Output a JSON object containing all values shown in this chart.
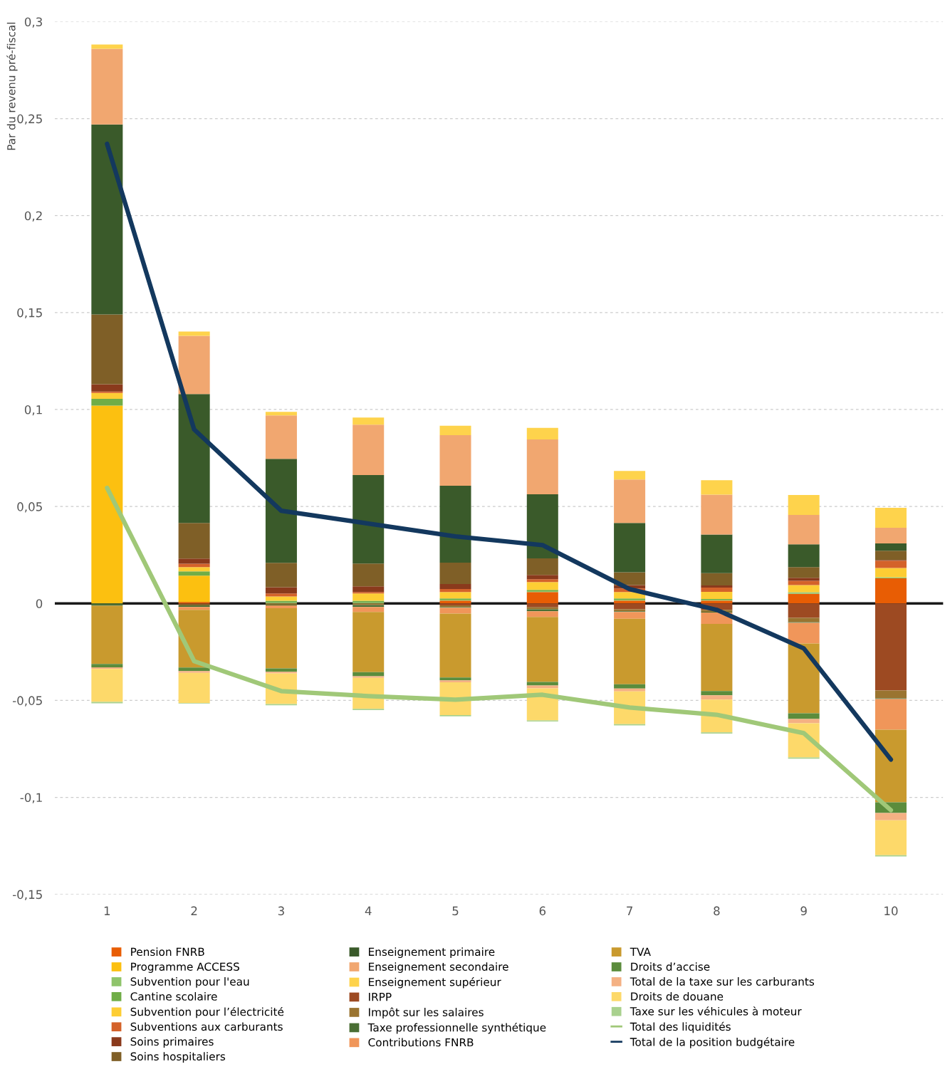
{
  "chart_data": {
    "type": "bar",
    "stacked": true,
    "ylabel": "Par du revenu pré-fiscal",
    "categories": [
      "1",
      "2",
      "3",
      "4",
      "5",
      "6",
      "7",
      "8",
      "9",
      "10"
    ],
    "ylim": [
      -0.15,
      0.3
    ],
    "yticks": [
      {
        "value": 0.3,
        "label": "0,3"
      },
      {
        "value": 0.25,
        "label": "0,25"
      },
      {
        "value": 0.2,
        "label": "0,2"
      },
      {
        "value": 0.15,
        "label": "0,15"
      },
      {
        "value": 0.1,
        "label": "0,1"
      },
      {
        "value": 0.05,
        "label": "0,05"
      },
      0,
      {
        "value": -0.05,
        "label": "-0,05"
      },
      {
        "value": -0.1,
        "label": "-0,1"
      },
      {
        "value": -0.15,
        "label": "-0,15"
      }
    ],
    "grid": "y",
    "legend": "bottom",
    "ref_lines": [
      {
        "axis": "y",
        "value": 0,
        "color": "#1a1a1a"
      }
    ],
    "series": [
      {
        "name": "Pension FNRB",
        "color": "#e85d04",
        "values": [
          0,
          0.0007,
          0,
          0,
          0.0015,
          0.0059,
          0.0015,
          0.0015,
          0.005,
          0.0129
        ]
      },
      {
        "name": "Programme ACCESS",
        "color": "#fcc010",
        "values": [
          0.102,
          0.0136,
          0,
          0,
          0,
          0,
          0,
          0,
          0,
          0
        ]
      },
      {
        "name": "Subvention pour l'eau",
        "color": "#8fc46b",
        "values": [
          0,
          0,
          0.0006,
          0.0006,
          0.0004,
          0.0004,
          0.0004,
          0.0004,
          0.0004,
          0.0006
        ]
      },
      {
        "name": "Cantine scolaire",
        "color": "#70ad47",
        "values": [
          0.0035,
          0.0022,
          0.0008,
          0.0008,
          0.0007,
          0.0007,
          0.0007,
          0.0004,
          0.0004,
          0
        ]
      },
      {
        "name": "Subvention pour l’électricité",
        "color": "#fdcd34",
        "values": [
          0.003,
          0.0022,
          0.0022,
          0.0037,
          0.0033,
          0.004,
          0.0033,
          0.0037,
          0.0037,
          0.0048
        ]
      },
      {
        "name": "Subventions aux carburants",
        "color": "#d4622a",
        "values": [
          0.0008,
          0.0018,
          0.0015,
          0.0008,
          0.0015,
          0.0015,
          0.0018,
          0.0022,
          0.0022,
          0.0037
        ]
      },
      {
        "name": "Soins primaires",
        "color": "#8a3a1c",
        "values": [
          0.0037,
          0.0026,
          0.0033,
          0.0029,
          0.0026,
          0.0022,
          0.0018,
          0.0011,
          0.0015,
          0.0004
        ]
      },
      {
        "name": "Soins hospitaliers",
        "color": "#7f5f27",
        "values": [
          0.036,
          0.0184,
          0.0125,
          0.0118,
          0.011,
          0.0085,
          0.0066,
          0.0063,
          0.0055,
          0.0048
        ]
      },
      {
        "name": "Enseignement primaire",
        "color": "#3a5a2a",
        "values": [
          0.098,
          0.0665,
          0.0537,
          0.0456,
          0.0397,
          0.0331,
          0.0254,
          0.0199,
          0.0118,
          0.0037
        ]
      },
      {
        "name": "Enseignement secondaire",
        "color": "#f1a770",
        "values": [
          0.039,
          0.03,
          0.0224,
          0.026,
          0.0261,
          0.0283,
          0.0224,
          0.0206,
          0.0151,
          0.0081
        ]
      },
      {
        "name": "Enseignement supérieur",
        "color": "#fed34c",
        "values": [
          0.0022,
          0.0022,
          0.0018,
          0.0037,
          0.0048,
          0.0059,
          0.0044,
          0.0074,
          0.0103,
          0.0103
        ]
      },
      {
        "name": "IRPP",
        "color": "#9d4a22",
        "values": [
          0,
          -0.0005,
          0,
          0,
          -0.001,
          -0.002,
          -0.003,
          -0.0033,
          -0.0074,
          -0.0449
        ]
      },
      {
        "name": "Impôt sur les salaires",
        "color": "#9a7430",
        "values": [
          0,
          -0.0005,
          -0.0006,
          -0.0008,
          -0.0008,
          -0.001,
          -0.001,
          -0.001,
          -0.0022,
          -0.004
        ]
      },
      {
        "name": "Taxe professionnelle synthétique",
        "color": "#4a6e34",
        "values": [
          -0.0012,
          -0.0008,
          -0.0004,
          -0.001,
          -0.0004,
          -0.001,
          -0.0004,
          -0.0004,
          -0.0004,
          -0.0004
        ]
      },
      {
        "name": "Contributions FNRB",
        "color": "#f0965a",
        "values": [
          0,
          -0.0015,
          -0.0015,
          -0.0026,
          -0.003,
          -0.003,
          -0.0035,
          -0.0059,
          -0.0107,
          -0.0158
        ]
      },
      {
        "name": "TVA",
        "color": "#c99a2e",
        "values": [
          -0.03,
          -0.0298,
          -0.031,
          -0.031,
          -0.033,
          -0.0335,
          -0.0338,
          -0.0346,
          -0.036,
          -0.0375
        ]
      },
      {
        "name": "Droits d’accise",
        "color": "#5b8c3c",
        "values": [
          -0.0018,
          -0.0018,
          -0.0018,
          -0.0022,
          -0.0015,
          -0.0018,
          -0.0022,
          -0.0022,
          -0.0029,
          -0.0055
        ]
      },
      {
        "name": "Total de la taxe sur les carburants",
        "color": "#f4b183",
        "values": [
          -0.0008,
          -0.0009,
          -0.0008,
          -0.0008,
          -0.001,
          -0.0015,
          -0.0015,
          -0.0022,
          -0.0022,
          -0.0037
        ]
      },
      {
        "name": "Droits de douane",
        "color": "#fdd96a",
        "values": [
          -0.017,
          -0.0155,
          -0.0158,
          -0.016,
          -0.0169,
          -0.0165,
          -0.0169,
          -0.0169,
          -0.0176,
          -0.018
        ]
      },
      {
        "name": "Taxe sur les véhicules à moteur",
        "color": "#a9d18e",
        "values": [
          -0.0007,
          -0.0003,
          -0.0006,
          -0.0006,
          -0.0006,
          -0.0006,
          -0.0006,
          -0.0006,
          -0.0007,
          -0.0007
        ]
      },
      {
        "name": "Total des liquidités",
        "type": "line",
        "color": "#a0c878",
        "marker": "none",
        "line_style": "solid",
        "values": [
          0.0596,
          -0.0298,
          -0.0452,
          -0.0478,
          -0.0496,
          -0.0471,
          -0.0537,
          -0.0574,
          -0.0669,
          -0.1066
        ]
      },
      {
        "name": "Total de la position budgétaire",
        "type": "line",
        "color": "#13385e",
        "marker": "none",
        "line_style": "solid",
        "values": [
          0.237,
          0.0897,
          0.0478,
          0.0412,
          0.0346,
          0.0301,
          0.0074,
          -0.0033,
          -0.0232,
          -0.0805
        ]
      }
    ]
  }
}
